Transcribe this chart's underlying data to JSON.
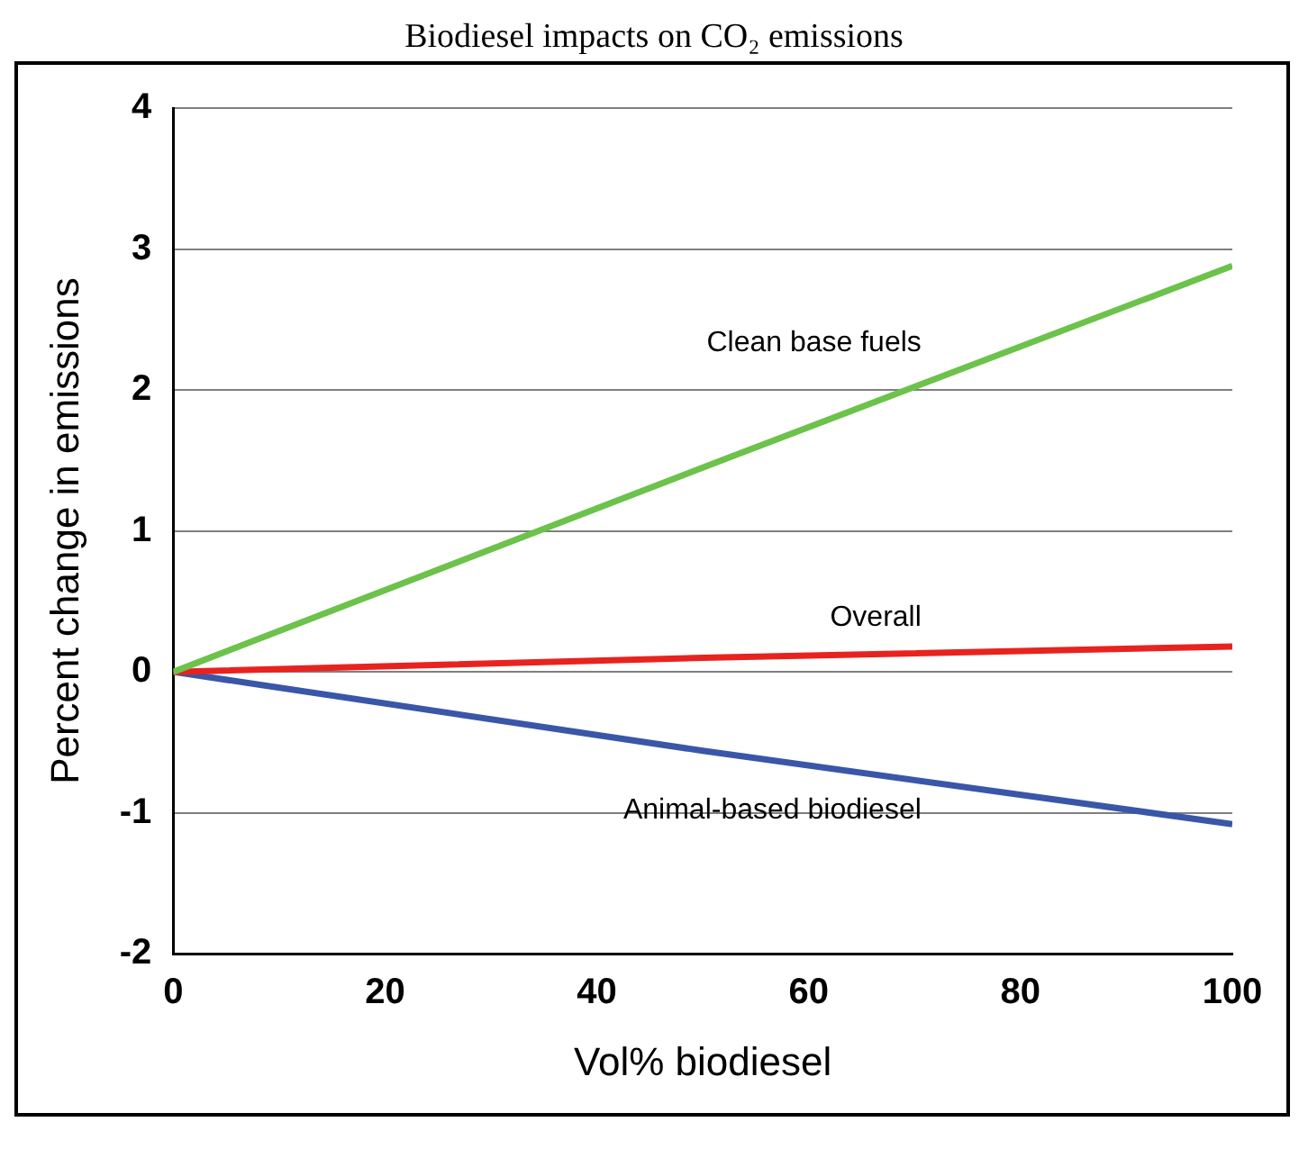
{
  "chart_data": {
    "type": "line",
    "title": "Biodiesel impacts on CO₂ emissions",
    "xlabel": "Vol% biodiesel",
    "ylabel": "Percent change in emissions",
    "series": [
      {
        "name": "Clean base fuels",
        "color": "#6cc24a",
        "x": [
          0,
          50,
          100
        ],
        "values": [
          0,
          1.45,
          2.88
        ]
      },
      {
        "name": "Overall",
        "color": "#e8231f",
        "x": [
          0,
          50,
          100
        ],
        "values": [
          0,
          0.1,
          0.18
        ]
      },
      {
        "name": "Animal-based biodiesel",
        "color": "#3a56a8",
        "x": [
          0,
          50,
          100
        ],
        "values": [
          0,
          -0.56,
          -1.08
        ]
      }
    ],
    "xlim": [
      0,
      100
    ],
    "xticks": [
      0,
      20,
      40,
      60,
      80,
      100
    ],
    "ylim": [
      -2,
      4
    ],
    "yticks": [
      -2,
      -1,
      0,
      1,
      2,
      3,
      4
    ],
    "grid": "y",
    "legend": false,
    "marker": "none",
    "line_style": "solid"
  }
}
